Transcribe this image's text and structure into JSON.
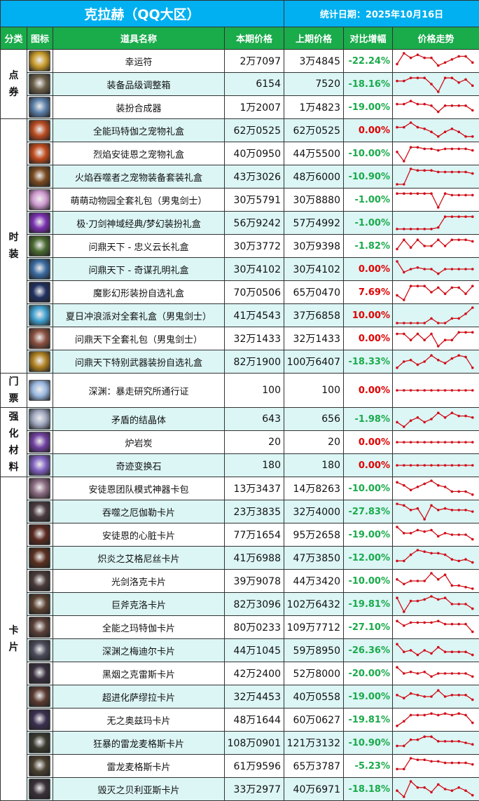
{
  "header": {
    "title": "克拉赫（QQ大区）",
    "date": "统计日期：2025年10月16日"
  },
  "columns": [
    "分类",
    "图标",
    "道具名称",
    "本期价格",
    "上期价格",
    "对比增幅",
    "价格走势"
  ],
  "colors": {
    "title_bg": "#00b0f0",
    "header_bg": "#1aab4b",
    "row_alt": "#dcf5f5",
    "decrease": "#1aab4b",
    "increase": "#e00000",
    "trend_line": "#d0101a"
  },
  "categories": [
    {
      "label": "点券",
      "rows": 3
    },
    {
      "label": "时装",
      "rows": 11
    },
    {
      "label": "门票",
      "rows": 1
    },
    {
      "label": "强化材料",
      "rows": 3
    },
    {
      "label": "卡片",
      "rows": 14
    }
  ],
  "rows": [
    {
      "name": "幸运符",
      "cur": "2万7097",
      "prev": "3万4845",
      "chg": "-22.24%",
      "icon": "#c89a2a",
      "trend": [
        3,
        10,
        7,
        9,
        7,
        7,
        2,
        4,
        6,
        8,
        8,
        4
      ]
    },
    {
      "name": "装备品级调整箱",
      "cur": "6154",
      "prev": "7520",
      "chg": "-18.16%",
      "icon": "#6b5e48",
      "trend": [
        7,
        7,
        9,
        9,
        9,
        5,
        0,
        9,
        9,
        6,
        8,
        4
      ]
    },
    {
      "name": "装扮合成器",
      "cur": "1万2007",
      "prev": "1万4823",
      "chg": "-19.00%",
      "icon": "#5a7fa8",
      "trend": [
        7,
        7,
        9,
        7,
        7,
        6,
        2,
        6,
        6,
        6,
        6,
        3
      ]
    },
    {
      "name": "全能玛特伽之宠物礼盒",
      "cur": "62万0525",
      "prev": "62万0525",
      "chg": "0.00%",
      "icon": "#b84a20",
      "trend": [
        7,
        7,
        10,
        7,
        6,
        4,
        1,
        4,
        6,
        4,
        1,
        1
      ]
    },
    {
      "name": "烈焰安徒恩之宠物礼盒",
      "cur": "40万0950",
      "prev": "44万5500",
      "chg": "-10.00%",
      "icon": "#c04a1c",
      "trend": [
        6,
        0,
        9,
        9,
        8,
        8,
        7,
        8,
        8,
        8,
        8,
        7
      ]
    },
    {
      "name": "火焰吞噬者之宠物装备套装礼盒",
      "cur": "43万3026",
      "prev": "48万6000",
      "chg": "-10.90%",
      "icon": "#7a4a20",
      "trend": [
        0,
        0,
        10,
        9,
        9,
        9,
        8,
        8,
        8,
        8,
        8,
        7
      ]
    },
    {
      "name": "萌萌动物园全套礼包（男鬼剑士）",
      "cur": "30万5791",
      "prev": "30万8880",
      "chg": "-1.00%",
      "icon": "#d09ad0",
      "trend": [
        9,
        9,
        9,
        9,
        9,
        9,
        0,
        9,
        8,
        8,
        8,
        8
      ]
    },
    {
      "name": "极·刀剑神域经典/梦幻装扮礼盒",
      "cur": "56万9242",
      "prev": "57万4992",
      "chg": "-1.00%",
      "icon": "#7a30b0",
      "trend": [
        1,
        1,
        1,
        1,
        1,
        1,
        2,
        9,
        9,
        9,
        9,
        9
      ]
    },
    {
      "name": "问鼎天下 - 忠义云长礼盒",
      "cur": "30万3772",
      "prev": "30万9398",
      "chg": "-1.82%",
      "icon": "#4a6a30",
      "trend": [
        3,
        9,
        4,
        9,
        5,
        5,
        9,
        5,
        9,
        9,
        9,
        8
      ]
    },
    {
      "name": "问鼎天下 - 奇谋孔明礼盒",
      "cur": "30万4102",
      "prev": "30万4102",
      "chg": "0.00%",
      "icon": "#3a6aa0",
      "trend": [
        10,
        3,
        5,
        6,
        5,
        5,
        2,
        5,
        5,
        5,
        5,
        5
      ]
    },
    {
      "name": "魔影幻形装扮自选礼盒",
      "cur": "70万0506",
      "prev": "65万0470",
      "chg": "7.69%",
      "icon": "#203060",
      "trend": [
        3,
        0,
        9,
        9,
        9,
        5,
        8,
        4,
        8,
        8,
        4,
        9
      ]
    },
    {
      "name": "夏日冲浪派对全套礼盒（男鬼剑士）",
      "cur": "41万4543",
      "prev": "37万6858",
      "chg": "10.00%",
      "icon": "#40a0d0",
      "trend": [
        0,
        0,
        0,
        0,
        0,
        3,
        0,
        0,
        3,
        3,
        6,
        10
      ]
    },
    {
      "name": "问鼎天下全套礼包（男鬼剑士）",
      "cur": "32万1433",
      "prev": "32万1433",
      "chg": "0.00%",
      "icon": "#8a5040",
      "trend": [
        8,
        8,
        4,
        8,
        4,
        8,
        0,
        4,
        4,
        9,
        9,
        9
      ]
    },
    {
      "name": "问鼎天下特别武器装扮自选礼盒",
      "cur": "82万1900",
      "prev": "100万6407",
      "chg": "-18.33%",
      "icon": "#b08020",
      "trend": [
        1,
        5,
        6,
        3,
        5,
        9,
        6,
        4,
        7,
        9,
        8,
        1
      ]
    },
    {
      "name": "深渊：暴走研究所通行证",
      "cur": "100",
      "prev": "100",
      "chg": "0.00%",
      "icon": "#9ab8e0",
      "trend": [
        5,
        5,
        5,
        5,
        5,
        5,
        5,
        5,
        5,
        5,
        5,
        5
      ]
    },
    {
      "name": "矛盾的结晶体",
      "cur": "643",
      "prev": "656",
      "chg": "-1.98%",
      "icon": "#a0a8c0",
      "trend": [
        3,
        0,
        4,
        6,
        3,
        5,
        9,
        6,
        9,
        7,
        7,
        6
      ]
    },
    {
      "name": "炉岩炭",
      "cur": "20",
      "prev": "20",
      "chg": "0.00%",
      "icon": "#7040a0",
      "trend": [
        5,
        5,
        5,
        5,
        5,
        5,
        5,
        5,
        5,
        5,
        5,
        5
      ]
    },
    {
      "name": "奇迹变换石",
      "cur": "180",
      "prev": "180",
      "chg": "0.00%",
      "icon": "#8060c0",
      "trend": [
        5,
        5,
        5,
        5,
        5,
        5,
        5,
        5,
        5,
        5,
        5,
        5
      ]
    },
    {
      "name": "安徒恩团队模式神器卡包",
      "cur": "13万3437",
      "prev": "14万8263",
      "chg": "-10.00%",
      "icon": "#8a6a80",
      "trend": [
        9,
        7,
        4,
        6,
        8,
        10,
        7,
        6,
        3,
        3,
        3,
        1
      ]
    },
    {
      "name": "吞噬之厄伽勒卡片",
      "cur": "23万3835",
      "prev": "32万4000",
      "chg": "-27.83%",
      "icon": "#4a3a40",
      "trend": [
        10,
        9,
        6,
        7,
        0,
        9,
        6,
        7,
        6,
        6,
        6,
        5
      ]
    },
    {
      "name": "安徒恩的心脏卡片",
      "cur": "77万1654",
      "prev": "95万2658",
      "chg": "-19.00%",
      "icon": "#5a2a20",
      "trend": [
        10,
        6,
        6,
        8,
        7,
        8,
        4,
        6,
        5,
        5,
        5,
        2
      ]
    },
    {
      "name": "炽炎之艾格尼丝卡片",
      "cur": "41万6988",
      "prev": "47万3850",
      "chg": "-12.00%",
      "icon": "#5a3020",
      "trend": [
        3,
        3,
        7,
        10,
        9,
        8,
        8,
        7,
        4,
        3,
        4,
        2
      ]
    },
    {
      "name": "光剑洛克卡片",
      "cur": "39万9078",
      "prev": "44万3420",
      "chg": "-10.00%",
      "icon": "#4a3a3a",
      "trend": [
        6,
        3,
        5,
        5,
        5,
        10,
        6,
        9,
        2,
        2,
        1,
        0
      ]
    },
    {
      "name": "巨斧克洛卡片",
      "cur": "82万3096",
      "prev": "102万6432",
      "chg": "-19.81%",
      "icon": "#5a4030",
      "trend": [
        9,
        0,
        7,
        7,
        8,
        10,
        8,
        9,
        5,
        5,
        5,
        2
      ]
    },
    {
      "name": "全能之玛特伽卡片",
      "cur": "80万0233",
      "prev": "109万7712",
      "chg": "-27.10%",
      "icon": "#5a4038",
      "trend": [
        9,
        6,
        8,
        8,
        8,
        8,
        9,
        7,
        7,
        7,
        7,
        2
      ]
    },
    {
      "name": "深渊之梅迪尔卡片",
      "cur": "44万1045",
      "prev": "59万8950",
      "chg": "-26.36%",
      "icon": "#4a4a5a",
      "trend": [
        9,
        4,
        5,
        2,
        5,
        3,
        7,
        4,
        4,
        4,
        4,
        2
      ]
    },
    {
      "name": "黑烟之克雷斯卡片",
      "cur": "42万2400",
      "prev": "52万8000",
      "chg": "-20.00%",
      "icon": "#3a3040",
      "trend": [
        9,
        5,
        6,
        5,
        6,
        3,
        5,
        5,
        5,
        5,
        5,
        3
      ]
    },
    {
      "name": "超进化萨缪拉卡片",
      "cur": "32万4453",
      "prev": "40万0558",
      "chg": "-19.00%",
      "icon": "#5a3a30",
      "trend": [
        6,
        4,
        7,
        6,
        5,
        5,
        9,
        5,
        6,
        6,
        6,
        3
      ]
    },
    {
      "name": "无之奥兹玛卡片",
      "cur": "48万1644",
      "prev": "60万0627",
      "chg": "-19.81%",
      "icon": "#3a3050",
      "trend": [
        1,
        4,
        8,
        8,
        8,
        9,
        8,
        9,
        8,
        9,
        8,
        3
      ]
    },
    {
      "name": "狂暴的雷龙麦格斯卡片",
      "cur": "108万0901",
      "prev": "121万3132",
      "chg": "-10.90%",
      "icon": "#3a3a30",
      "trend": [
        3,
        3,
        7,
        7,
        9,
        9,
        6,
        6,
        6,
        6,
        5,
        4
      ]
    },
    {
      "name": "雷龙麦格斯卡片",
      "cur": "61万9596",
      "prev": "65万3787",
      "chg": "-5.23%",
      "icon": "#4a4030",
      "trend": [
        3,
        3,
        10,
        9,
        9,
        8,
        8,
        7,
        7,
        7,
        7,
        6
      ]
    },
    {
      "name": "毁灭之贝利亚斯卡片",
      "cur": "33万2977",
      "prev": "40万6971",
      "chg": "-18.18%",
      "icon": "#3a3038",
      "trend": [
        4,
        0,
        10,
        6,
        6,
        3,
        8,
        5,
        4,
        6,
        4,
        1
      ]
    }
  ]
}
